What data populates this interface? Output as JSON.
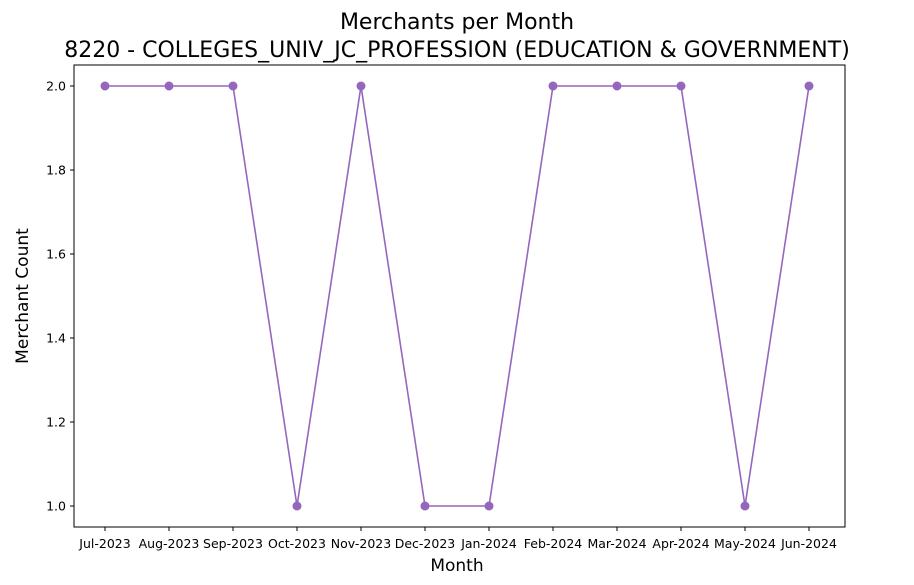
{
  "chart_data": {
    "type": "line",
    "title": "Merchants per Month",
    "subtitle": "8220 - COLLEGES_UNIV_JC_PROFESSION (EDUCATION & GOVERNMENT)",
    "xlabel": "Month",
    "ylabel": "Merchant Count",
    "categories": [
      "Jul-2023",
      "Aug-2023",
      "Sep-2023",
      "Oct-2023",
      "Nov-2023",
      "Dec-2023",
      "Jan-2024",
      "Feb-2024",
      "Mar-2024",
      "Apr-2024",
      "May-2024",
      "Jun-2024"
    ],
    "series": [
      {
        "values": [
          2,
          2,
          2,
          1,
          2,
          1,
          1,
          2,
          2,
          2,
          1,
          2
        ],
        "color": "#9467bd",
        "marker": "circle"
      }
    ],
    "ylim": [
      0.95,
      2.05
    ],
    "yticks": [
      1.0,
      1.2,
      1.4,
      1.6,
      1.8,
      2.0
    ],
    "ytick_labels": [
      "1.0",
      "1.2",
      "1.4",
      "1.6",
      "1.8",
      "2.0"
    ],
    "grid": false,
    "legend": "none"
  }
}
